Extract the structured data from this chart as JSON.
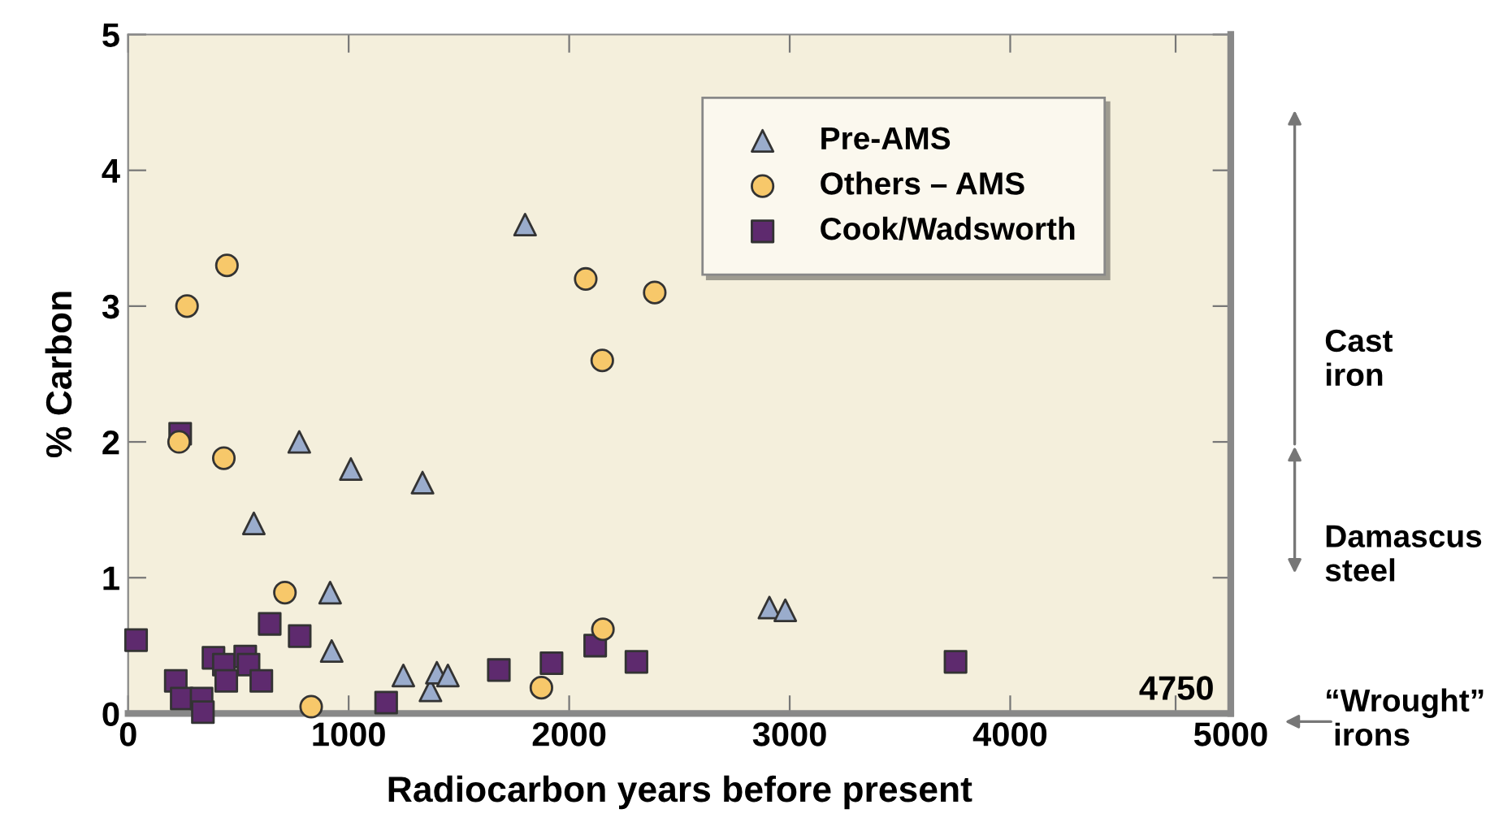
{
  "chart_data": {
    "type": "scatter",
    "xlabel": "Radiocarbon years before present",
    "ylabel": "% Carbon",
    "xlim": [
      0,
      5000
    ],
    "ylim": [
      0,
      5
    ],
    "xticks": [
      0,
      1000,
      2000,
      3000,
      4000,
      {
        "value": 4750,
        "label": null
      },
      5000
    ],
    "yticks": [
      0,
      1,
      2,
      3,
      4,
      5
    ],
    "grid": false,
    "legend": "top right",
    "annotations": [
      "4750",
      "Cast\niron",
      "Damascus\nsteel",
      "“Wrought”\n irons"
    ],
    "series": [
      {
        "name": "Pre-AMS",
        "color": "#9aaccc",
        "marker": "triangle",
        "x": [
          1800,
          776,
          1010,
          1335,
          570,
          916,
          923,
          1248,
          1371,
          1400,
          1450,
          2908,
          2980
        ],
        "values": [
          3.6,
          2.0,
          1.8,
          1.7,
          1.4,
          0.89,
          0.46,
          0.28,
          0.17,
          0.3,
          0.28,
          0.78,
          0.76
        ]
      },
      {
        "name": "Others – AMS",
        "color": "#f7c86a",
        "marker": "circle",
        "x": [
          267,
          448,
          2075,
          2150,
          2388,
          231,
          434,
          711,
          830,
          1874,
          2153
        ],
        "values": [
          3.0,
          3.3,
          3.2,
          2.6,
          3.1,
          2.0,
          1.88,
          0.89,
          0.05,
          0.19,
          0.62
        ]
      },
      {
        "name": "Cook/Wadsworth",
        "color": "#5e2a6e",
        "marker": "square",
        "x": [
          36,
          216,
          243,
          333,
          339,
          387,
          434,
          445,
          531,
          546,
          604,
          642,
          778,
          1170,
          1681,
          1920,
          2118,
          2305,
          236,
          3752
        ],
        "values": [
          0.54,
          0.24,
          0.11,
          0.11,
          0.01,
          0.41,
          0.36,
          0.24,
          0.42,
          0.36,
          0.24,
          0.66,
          0.57,
          0.08,
          0.32,
          0.37,
          0.5,
          0.38,
          2.06,
          0.38
        ]
      }
    ]
  }
}
